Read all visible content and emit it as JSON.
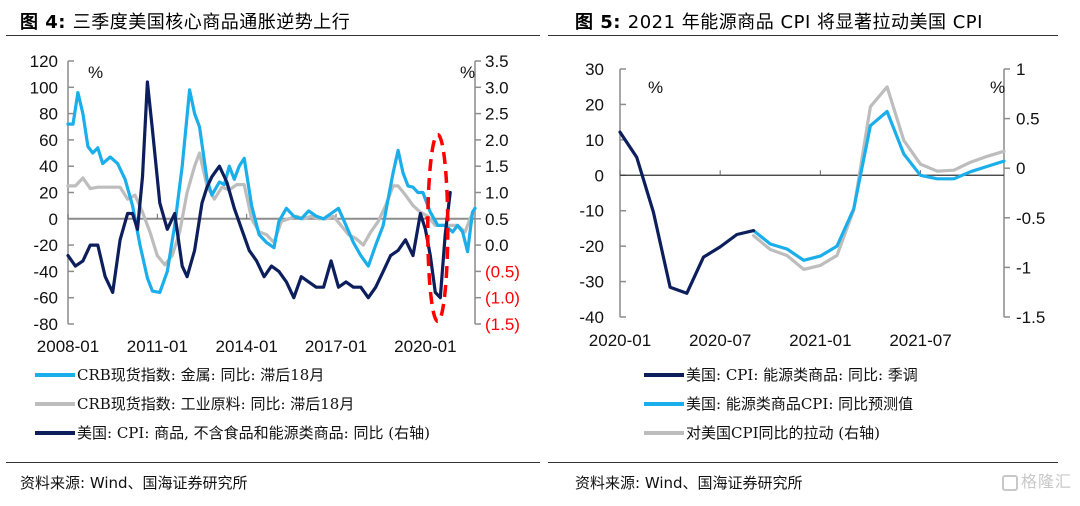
{
  "figures": {
    "left": {
      "title_prefix": "图 4:",
      "title_text": "三季度美国核心商品通胀逆势上行",
      "source": "资料来源: Wind、国海证券研究所"
    },
    "right": {
      "title_prefix": "图 5:",
      "title_text": "2021 年能源商品 CPI 将显著拉动美国 CPI",
      "source": "资料来源: Wind、国海证券研究所"
    }
  },
  "watermark": "格隆汇",
  "colors": {
    "light_blue": "#1aaeea",
    "gray": "#bdbdbd",
    "navy": "#0c1f5c",
    "red": "#ff0000",
    "axis": "#8c8c8c"
  },
  "chart_data": [
    {
      "type": "line",
      "title": "三季度美国核心商品通胀逆势上行",
      "xlabel": "",
      "ylabel": "%",
      "y2label": "%",
      "x_ticks": [
        "2008-01",
        "2011-01",
        "2014-01",
        "2017-01",
        "2020-01"
      ],
      "ylim": [
        -80,
        120
      ],
      "y_ticks": [
        "120",
        "100",
        "80",
        "60",
        "40",
        "20",
        "0",
        "-20",
        "-40",
        "-60",
        "-80"
      ],
      "y2lim": [
        -1.5,
        3.5
      ],
      "y2_ticks": [
        "3.5",
        "3.0",
        "2.5",
        "2.0",
        "1.5",
        "1.0",
        "0.5",
        "0.0",
        "(0.5)",
        "(1.0)",
        "(1.5)"
      ],
      "x_range": [
        "2008-01",
        "2021-09"
      ],
      "grid": false,
      "legend": "bottom",
      "annotation": "red dashed ellipse highlighting 2020 dip and rebound of core goods CPI",
      "series": [
        {
          "name": "CRB现货指数: 金属: 同比: 滞后18月",
          "axis": "left",
          "color": "#1aaeea",
          "points": [
            [
              "2008-01",
              72
            ],
            [
              "2008-03",
              72
            ],
            [
              "2008-05",
              96
            ],
            [
              "2008-07",
              80
            ],
            [
              "2008-09",
              55
            ],
            [
              "2008-11",
              50
            ],
            [
              "2009-01",
              54
            ],
            [
              "2009-03",
              42
            ],
            [
              "2009-06",
              47
            ],
            [
              "2009-09",
              42
            ],
            [
              "2009-12",
              30
            ],
            [
              "2010-03",
              10
            ],
            [
              "2010-06",
              -20
            ],
            [
              "2010-09",
              -45
            ],
            [
              "2010-11",
              -55
            ],
            [
              "2011-02",
              -56
            ],
            [
              "2011-05",
              -40
            ],
            [
              "2011-08",
              -5
            ],
            [
              "2011-11",
              40
            ],
            [
              "2012-02",
              98
            ],
            [
              "2012-04",
              80
            ],
            [
              "2012-06",
              70
            ],
            [
              "2012-09",
              30
            ],
            [
              "2012-11",
              18
            ],
            [
              "2013-02",
              28
            ],
            [
              "2013-04",
              26
            ],
            [
              "2013-06",
              40
            ],
            [
              "2013-08",
              30
            ],
            [
              "2013-10",
              40
            ],
            [
              "2013-12",
              46
            ],
            [
              "2014-03",
              10
            ],
            [
              "2014-06",
              -12
            ],
            [
              "2014-09",
              -18
            ],
            [
              "2014-12",
              -22
            ],
            [
              "2015-02",
              -2
            ],
            [
              "2015-05",
              8
            ],
            [
              "2015-08",
              2
            ],
            [
              "2015-11",
              0
            ],
            [
              "2016-02",
              6
            ],
            [
              "2016-05",
              2
            ],
            [
              "2016-08",
              0
            ],
            [
              "2016-11",
              4
            ],
            [
              "2017-02",
              8
            ],
            [
              "2017-05",
              -5
            ],
            [
              "2017-08",
              -18
            ],
            [
              "2017-11",
              -28
            ],
            [
              "2018-02",
              -36
            ],
            [
              "2018-05",
              -20
            ],
            [
              "2018-08",
              -5
            ],
            [
              "2018-10",
              15
            ],
            [
              "2018-12",
              35
            ],
            [
              "2019-02",
              52
            ],
            [
              "2019-04",
              35
            ],
            [
              "2019-06",
              25
            ],
            [
              "2019-08",
              24
            ],
            [
              "2019-10",
              20
            ],
            [
              "2019-12",
              20
            ],
            [
              "2020-03",
              5
            ],
            [
              "2020-06",
              -5
            ],
            [
              "2020-09",
              -5
            ],
            [
              "2020-12",
              -10
            ],
            [
              "2021-02",
              -5
            ],
            [
              "2021-04",
              -10
            ],
            [
              "2021-06",
              -25
            ],
            [
              "2021-08",
              5
            ],
            [
              "2021-09",
              8
            ]
          ]
        },
        {
          "name": "CRB现货指数: 工业原料: 同比: 滞后18月",
          "axis": "left",
          "color": "#bdbdbd",
          "points": [
            [
              "2008-01",
              25
            ],
            [
              "2008-04",
              25
            ],
            [
              "2008-07",
              31
            ],
            [
              "2008-10",
              23
            ],
            [
              "2009-01",
              24
            ],
            [
              "2009-06",
              24
            ],
            [
              "2009-10",
              24
            ],
            [
              "2010-01",
              15
            ],
            [
              "2010-04",
              18
            ],
            [
              "2010-07",
              5
            ],
            [
              "2010-10",
              -10
            ],
            [
              "2011-01",
              -28
            ],
            [
              "2011-04",
              -35
            ],
            [
              "2011-07",
              -28
            ],
            [
              "2011-10",
              -10
            ],
            [
              "2012-01",
              20
            ],
            [
              "2012-04",
              40
            ],
            [
              "2012-06",
              50
            ],
            [
              "2012-09",
              25
            ],
            [
              "2012-12",
              15
            ],
            [
              "2013-03",
              24
            ],
            [
              "2013-06",
              22
            ],
            [
              "2013-09",
              26
            ],
            [
              "2013-12",
              26
            ],
            [
              "2014-03",
              0
            ],
            [
              "2014-06",
              -10
            ],
            [
              "2014-09",
              -12
            ],
            [
              "2014-12",
              -18
            ],
            [
              "2015-03",
              -2
            ],
            [
              "2015-06",
              0
            ],
            [
              "2015-09",
              2
            ],
            [
              "2015-12",
              0
            ],
            [
              "2016-03",
              2
            ],
            [
              "2016-06",
              0
            ],
            [
              "2016-09",
              0
            ],
            [
              "2016-12",
              2
            ],
            [
              "2017-03",
              -5
            ],
            [
              "2017-06",
              -12
            ],
            [
              "2017-09",
              -15
            ],
            [
              "2017-12",
              -20
            ],
            [
              "2018-03",
              -10
            ],
            [
              "2018-06",
              -2
            ],
            [
              "2018-09",
              10
            ],
            [
              "2018-12",
              25
            ],
            [
              "2019-02",
              25
            ],
            [
              "2019-05",
              18
            ],
            [
              "2019-08",
              10
            ],
            [
              "2019-11",
              5
            ],
            [
              "2020-02",
              2
            ],
            [
              "2020-05",
              -5
            ],
            [
              "2020-08",
              -5
            ],
            [
              "2020-11",
              -5
            ],
            [
              "2021-02",
              -5
            ],
            [
              "2021-05",
              -10
            ],
            [
              "2021-07",
              0
            ],
            [
              "2021-09",
              8
            ]
          ]
        },
        {
          "name": "美国: CPI: 商品, 不含食品和能源类商品: 同比 (右轴)",
          "axis": "right",
          "color": "#0c1f5c",
          "points": [
            [
              "2008-01",
              -0.2
            ],
            [
              "2008-04",
              -0.4
            ],
            [
              "2008-07",
              -0.3
            ],
            [
              "2008-10",
              0
            ],
            [
              "2009-01",
              0
            ],
            [
              "2009-04",
              -0.6
            ],
            [
              "2009-07",
              -0.9
            ],
            [
              "2009-10",
              0.1
            ],
            [
              "2010-01",
              0.6
            ],
            [
              "2010-03",
              0.6
            ],
            [
              "2010-05",
              0.3
            ],
            [
              "2010-07",
              1.3
            ],
            [
              "2010-09",
              3.1
            ],
            [
              "2010-11",
              2.2
            ],
            [
              "2011-02",
              0.8
            ],
            [
              "2011-05",
              0.3
            ],
            [
              "2011-08",
              0.6
            ],
            [
              "2011-11",
              -0.4
            ],
            [
              "2012-01",
              -0.6
            ],
            [
              "2012-04",
              -0.1
            ],
            [
              "2012-07",
              0.8
            ],
            [
              "2012-09",
              1.1
            ],
            [
              "2012-11",
              1.3
            ],
            [
              "2013-02",
              1.5
            ],
            [
              "2013-05",
              1.2
            ],
            [
              "2013-08",
              0.7
            ],
            [
              "2013-11",
              0.3
            ],
            [
              "2014-02",
              -0.1
            ],
            [
              "2014-05",
              -0.3
            ],
            [
              "2014-08",
              -0.6
            ],
            [
              "2014-11",
              -0.4
            ],
            [
              "2015-02",
              -0.5
            ],
            [
              "2015-05",
              -0.7
            ],
            [
              "2015-08",
              -1.0
            ],
            [
              "2015-11",
              -0.6
            ],
            [
              "2016-02",
              -0.7
            ],
            [
              "2016-05",
              -0.8
            ],
            [
              "2016-08",
              -0.8
            ],
            [
              "2016-11",
              -0.3
            ],
            [
              "2017-02",
              -0.8
            ],
            [
              "2017-05",
              -0.7
            ],
            [
              "2017-08",
              -0.8
            ],
            [
              "2017-11",
              -0.8
            ],
            [
              "2018-02",
              -1.0
            ],
            [
              "2018-05",
              -0.8
            ],
            [
              "2018-08",
              -0.5
            ],
            [
              "2018-11",
              -0.2
            ],
            [
              "2019-02",
              -0.1
            ],
            [
              "2019-05",
              0.1
            ],
            [
              "2019-08",
              -0.2
            ],
            [
              "2019-11",
              0.6
            ],
            [
              "2020-01",
              0.3
            ],
            [
              "2020-03",
              -0.2
            ],
            [
              "2020-05",
              -0.9
            ],
            [
              "2020-07",
              -1.0
            ],
            [
              "2020-09",
              0.2
            ],
            [
              "2020-11",
              1.0
            ]
          ]
        }
      ]
    },
    {
      "type": "line",
      "title": "2021 年能源商品 CPI 将显著拉动美国 CPI",
      "xlabel": "",
      "ylabel": "%",
      "y2label": "%",
      "x_ticks": [
        "2020-01",
        "2020-07",
        "2021-01",
        "2021-07"
      ],
      "ylim": [
        -40,
        30
      ],
      "y_ticks": [
        "30",
        "20",
        "10",
        "0",
        "-10",
        "-20",
        "-30",
        "-40"
      ],
      "y2lim": [
        -1.5,
        1
      ],
      "y2_ticks": [
        "1",
        "0.5",
        "0",
        "-0.5",
        "-1",
        "-1.5"
      ],
      "x_range": [
        "2020-01",
        "2021-12"
      ],
      "grid": false,
      "legend": "bottom",
      "series": [
        {
          "name": "美国: CPI: 能源类商品: 同比: 季调",
          "axis": "left",
          "color": "#0c1f5c",
          "points": [
            [
              "2020-01",
              12.2
            ],
            [
              "2020-02",
              5.1
            ],
            [
              "2020-03",
              -10.4
            ],
            [
              "2020-04",
              -31.6
            ],
            [
              "2020-05",
              -33.3
            ],
            [
              "2020-06",
              -23.1
            ],
            [
              "2020-07",
              -20.2
            ],
            [
              "2020-08",
              -16.7
            ],
            [
              "2020-09",
              -15.6
            ]
          ]
        },
        {
          "name": "美国: 能源类商品CPI: 同比预测值",
          "axis": "left",
          "color": "#1aaeea",
          "points": [
            [
              "2020-09",
              -15.6
            ],
            [
              "2020-10",
              -19.4
            ],
            [
              "2020-11",
              -20.8
            ],
            [
              "2020-12",
              -24.0
            ],
            [
              "2021-01",
              -22.8
            ],
            [
              "2021-02",
              -20.0
            ],
            [
              "2021-03",
              -9.5
            ],
            [
              "2021-04",
              14.0
            ],
            [
              "2021-05",
              18.0
            ],
            [
              "2021-06",
              6.0
            ],
            [
              "2021-07",
              0.0
            ],
            [
              "2021-08",
              -1.0
            ],
            [
              "2021-09",
              -1.0
            ],
            [
              "2021-10",
              1.0
            ],
            [
              "2021-11",
              2.5
            ],
            [
              "2021-12",
              4.0
            ]
          ]
        },
        {
          "name": "对美国CPI同比的拉动 (右轴)",
          "axis": "right",
          "color": "#bdbdbd",
          "points": [
            [
              "2020-09",
              -0.68
            ],
            [
              "2020-10",
              -0.82
            ],
            [
              "2020-11",
              -0.88
            ],
            [
              "2020-12",
              -1.02
            ],
            [
              "2021-01",
              -0.98
            ],
            [
              "2021-02",
              -0.88
            ],
            [
              "2021-03",
              -0.42
            ],
            [
              "2021-04",
              0.62
            ],
            [
              "2021-05",
              0.82
            ],
            [
              "2021-06",
              0.28
            ],
            [
              "2021-07",
              0.04
            ],
            [
              "2021-08",
              -0.03
            ],
            [
              "2021-09",
              -0.02
            ],
            [
              "2021-10",
              0.06
            ],
            [
              "2021-11",
              0.12
            ],
            [
              "2021-12",
              0.17
            ]
          ]
        }
      ]
    }
  ]
}
